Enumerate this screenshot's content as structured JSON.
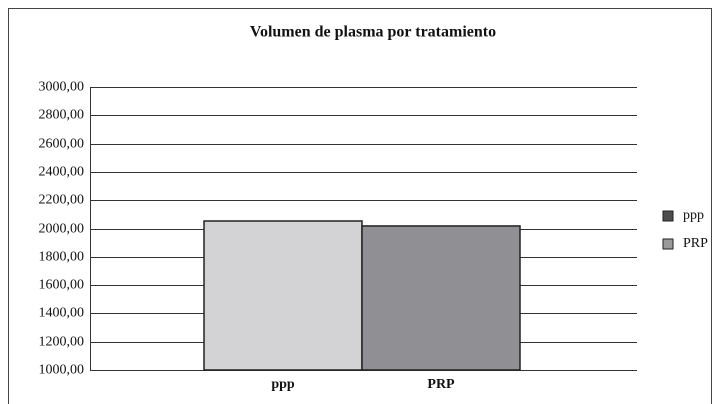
{
  "chart_data": {
    "type": "bar",
    "title": "Volumen de plasma por tratamiento",
    "categories": [
      "ppp",
      "PRP"
    ],
    "values": [
      2053,
      2018
    ],
    "colors": [
      "#d3d3d6",
      "#909094"
    ],
    "legend_colors": [
      "#4d4d4d",
      "#9a9a9a"
    ],
    "ylim": [
      1000,
      3000
    ],
    "yticks": [
      {
        "value": 1000,
        "label": "1000,00"
      },
      {
        "value": 1200,
        "label": "1200,00"
      },
      {
        "value": 1400,
        "label": "1400,00"
      },
      {
        "value": 1600,
        "label": "1600,00"
      },
      {
        "value": 1800,
        "label": "1800,00"
      },
      {
        "value": 2000,
        "label": "2000,00"
      },
      {
        "value": 2200,
        "label": "2200,00"
      },
      {
        "value": 2400,
        "label": "2400,00"
      },
      {
        "value": 2600,
        "label": "2600,00"
      },
      {
        "value": 2800,
        "label": "2800,00"
      },
      {
        "value": 3000,
        "label": "3000,00"
      }
    ],
    "grid": true
  }
}
